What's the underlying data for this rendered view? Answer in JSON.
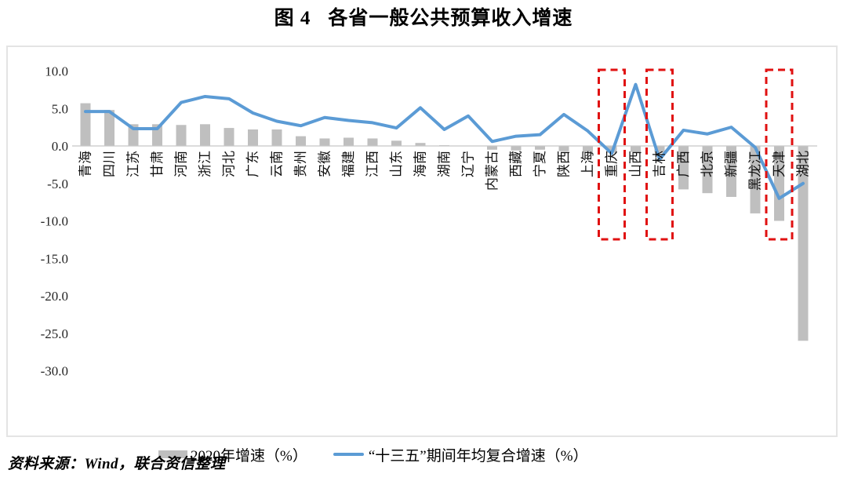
{
  "title": {
    "figure_label": "图 4",
    "text": "各省一般公共预算收入增速"
  },
  "source_note": "资料来源：Wind，联合资信整理",
  "y_axis": {
    "ticks": [
      "10.0",
      "5.0",
      "0.0",
      "-5.0",
      "-10.0",
      "-15.0",
      "-20.0",
      "-25.0",
      "-30.0"
    ],
    "min": -30,
    "max": 10,
    "step": 5
  },
  "legend": [
    {
      "label": "2020年增速（%）",
      "type": "bar",
      "color": "#BFBFBF"
    },
    {
      "label": "“十三五”期间年均复合增速（%）",
      "type": "line",
      "color": "#5B9BD5"
    }
  ],
  "colors": {
    "bar": "#BFBFBF",
    "line": "#5B9BD5",
    "highlight_box": "#E01111",
    "axis_line": "#C8C8C8",
    "frame_border": "#E4E4E4",
    "tick_text": "#262626"
  },
  "chart_data": {
    "type": "bar",
    "title": "图 4　各省一般公共预算收入增速",
    "categories": [
      "青海",
      "四川",
      "江苏",
      "甘肃",
      "河南",
      "浙江",
      "河北",
      "广东",
      "云南",
      "贵州",
      "安徽",
      "福建",
      "江西",
      "山东",
      "海南",
      "湖南",
      "辽宁",
      "内蒙古",
      "西藏",
      "宁夏",
      "陕西",
      "上海",
      "重庆",
      "山西",
      "吉林",
      "广西",
      "北京",
      "新疆",
      "黑龙江",
      "天津",
      "湖北"
    ],
    "series": [
      {
        "name": "2020年增速（%）",
        "kind": "bar",
        "values": [
          5.7,
          4.8,
          2.9,
          2.9,
          2.8,
          2.9,
          2.4,
          2.2,
          2.2,
          1.3,
          1.0,
          1.1,
          1.0,
          0.7,
          0.4,
          0.1,
          0.0,
          -0.5,
          -0.6,
          -0.5,
          -0.7,
          -0.9,
          -0.9,
          -0.8,
          -0.9,
          -5.8,
          -6.3,
          -6.8,
          -9.0,
          -10.0,
          -26.0
        ]
      },
      {
        "name": "“十三五”期间年均复合增速（%）",
        "kind": "line",
        "values": [
          4.6,
          4.6,
          2.3,
          2.3,
          5.8,
          6.6,
          6.3,
          4.4,
          3.3,
          2.7,
          3.8,
          3.4,
          3.1,
          2.4,
          5.1,
          2.2,
          4.0,
          0.6,
          1.3,
          1.5,
          4.2,
          2.0,
          -1.0,
          8.2,
          -1.8,
          2.1,
          1.6,
          2.5,
          -0.2,
          -7.0,
          -5.0
        ]
      }
    ],
    "ylim": [
      -30,
      10
    ],
    "grid": false,
    "legend_position": "bottom",
    "highlighted_categories": [
      "重庆",
      "吉林",
      "天津"
    ]
  }
}
